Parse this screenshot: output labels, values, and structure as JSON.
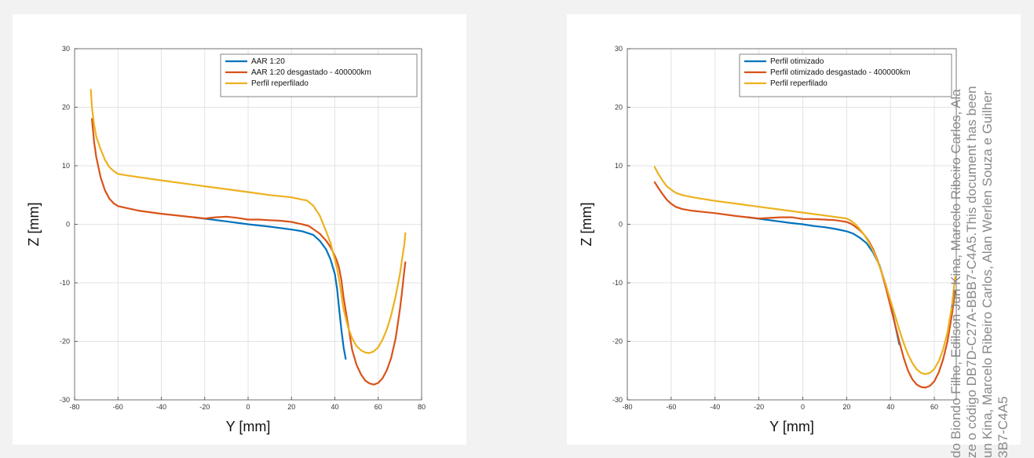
{
  "chart_data": [
    {
      "type": "line",
      "title": "",
      "xlabel": "Y [mm]",
      "ylabel": "Z [mm]",
      "xlim": [
        -80,
        80
      ],
      "ylim": [
        -30,
        30
      ],
      "xticks": [
        -80,
        -60,
        -40,
        -20,
        0,
        20,
        40,
        60,
        80
      ],
      "yticks": [
        -30,
        -20,
        -10,
        0,
        10,
        20,
        30
      ],
      "grid": true,
      "legend": "top-right",
      "series": [
        {
          "name": "AAR 1:20",
          "color": "#0072BD",
          "x": [
            -25,
            -10,
            0,
            10,
            20,
            25,
            30,
            33,
            36,
            38,
            40,
            41,
            42,
            43,
            44,
            45
          ],
          "y": [
            1.2,
            0.5,
            0,
            -0.4,
            -0.9,
            -1.2,
            -1.8,
            -2.8,
            -4.3,
            -6,
            -8.5,
            -11,
            -14.5,
            -18,
            -21,
            -23
          ]
        },
        {
          "name": "AAR 1:20 desgastado - 400000km",
          "color": "#D95319",
          "x": [
            -72,
            -71,
            -70,
            -68,
            -66,
            -64,
            -62,
            -60,
            -55,
            -50,
            -40,
            -30,
            -20,
            -15,
            -10,
            -5,
            0,
            5,
            10,
            15,
            20,
            25,
            28,
            30,
            33,
            36,
            38,
            40,
            41,
            42,
            43,
            44,
            46,
            48,
            50,
            52,
            54,
            56,
            58,
            60,
            62,
            64,
            66,
            68,
            70,
            71,
            72,
            72.5
          ],
          "y": [
            18,
            14,
            11.5,
            8,
            5.8,
            4.4,
            3.6,
            3.1,
            2.7,
            2.3,
            1.8,
            1.4,
            1.0,
            1.2,
            1.3,
            1.1,
            0.8,
            0.8,
            0.7,
            0.6,
            0.4,
            0,
            -0.3,
            -0.8,
            -1.6,
            -2.8,
            -3.9,
            -5.4,
            -6.3,
            -7.5,
            -9.5,
            -12.5,
            -17,
            -21.5,
            -24,
            -25.6,
            -26.7,
            -27.2,
            -27.4,
            -27.1,
            -26.3,
            -24.9,
            -22.8,
            -19.5,
            -14.5,
            -11.5,
            -8,
            -6.5
          ]
        },
        {
          "name": "Perfil reperfilado",
          "color": "#EDB120",
          "x": [
            -72.5,
            -72,
            -71,
            -70,
            -68,
            -66,
            -64,
            -62,
            -60,
            -55,
            -40,
            -20,
            0,
            10,
            20,
            25,
            27,
            30,
            33,
            36,
            38,
            40,
            41,
            42,
            43,
            44,
            46,
            48,
            50,
            52,
            54,
            56,
            58,
            60,
            62,
            64,
            66,
            68,
            70,
            71,
            72,
            72.5
          ],
          "y": [
            23,
            20,
            17,
            15,
            12.8,
            11,
            9.8,
            9.1,
            8.6,
            8.3,
            7.5,
            6.5,
            5.5,
            5,
            4.6,
            4.2,
            4.1,
            3.2,
            1.5,
            -1.2,
            -3.2,
            -6,
            -7.5,
            -9.5,
            -12,
            -14.5,
            -17.5,
            -19.5,
            -20.8,
            -21.5,
            -21.9,
            -22,
            -21.7,
            -21,
            -19.7,
            -17.9,
            -15.5,
            -12.3,
            -8.5,
            -6,
            -3.5,
            -1.5
          ]
        }
      ]
    },
    {
      "type": "line",
      "title": "",
      "xlabel": "Y [mm]",
      "ylabel": "Z [mm]",
      "xlim": [
        -80,
        70
      ],
      "ylim": [
        -30,
        30
      ],
      "xticks": [
        -80,
        -60,
        -40,
        -20,
        0,
        20,
        40,
        60
      ],
      "yticks": [
        -30,
        -20,
        -10,
        0,
        10,
        20,
        30
      ],
      "grid": true,
      "legend": "top-right",
      "series": [
        {
          "name": "Perfil otimizado",
          "color": "#0072BD",
          "x": [
            -25,
            -15,
            -5,
            0,
            5,
            10,
            15,
            20,
            23,
            26,
            29,
            32,
            35,
            38,
            40,
            42,
            44
          ],
          "y": [
            1.2,
            0.7,
            0.2,
            0,
            -0.3,
            -0.5,
            -0.8,
            -1.2,
            -1.6,
            -2.3,
            -3.2,
            -4.8,
            -7,
            -10.5,
            -13.5,
            -17,
            -20.5
          ]
        },
        {
          "name": "Perfil otimizado desgastado - 400000km",
          "color": "#D95319",
          "x": [
            -67.5,
            -66,
            -64,
            -62,
            -60,
            -58,
            -55,
            -50,
            -40,
            -30,
            -20,
            -10,
            -5,
            0,
            5,
            10,
            15,
            20,
            22,
            24,
            26,
            28,
            30,
            32,
            34,
            36,
            38,
            40,
            42,
            44,
            46,
            48,
            50,
            52,
            54,
            56,
            58,
            60,
            62,
            64,
            66,
            68,
            69.5
          ],
          "y": [
            7.2,
            6.3,
            5.2,
            4.2,
            3.5,
            3.0,
            2.6,
            2.3,
            1.9,
            1.4,
            1.0,
            1.2,
            1.2,
            0.9,
            0.9,
            0.8,
            0.7,
            0.4,
            0.1,
            -0.4,
            -1.0,
            -1.8,
            -2.8,
            -4.2,
            -6,
            -8.3,
            -11,
            -14,
            -17,
            -20,
            -22.8,
            -25,
            -26.5,
            -27.4,
            -27.8,
            -27.9,
            -27.6,
            -26.8,
            -25.3,
            -23.1,
            -20,
            -15.5,
            -11.5
          ]
        },
        {
          "name": "Perfil reperfilado",
          "color": "#EDB120",
          "x": [
            -67.5,
            -66,
            -64,
            -62,
            -60,
            -58,
            -55,
            -50,
            -40,
            -30,
            -20,
            -10,
            0,
            10,
            20,
            22,
            24,
            26,
            28,
            30,
            32,
            34,
            36,
            38,
            40,
            42,
            44,
            46,
            48,
            50,
            52,
            54,
            56,
            58,
            60,
            62,
            64,
            66,
            68,
            69.5
          ],
          "y": [
            9.8,
            8.7,
            7.5,
            6.5,
            5.9,
            5.4,
            5,
            4.6,
            4,
            3.5,
            3,
            2.5,
            2,
            1.5,
            1,
            0.6,
            0,
            -0.8,
            -1.8,
            -3,
            -4.5,
            -6.2,
            -8.2,
            -10.5,
            -13,
            -15.5,
            -18,
            -20.3,
            -22.2,
            -23.7,
            -24.8,
            -25.4,
            -25.6,
            -25.4,
            -24.7,
            -23.4,
            -21.4,
            -18.5,
            -14,
            -9
          ]
        }
      ]
    }
  ],
  "watermark": {
    "lines": [
      "do Biondo Filho, Edilson Jun Kina, Marcelo Ribeiro Carlos, Ala",
      "ze o código DB7D-C27A-BBB7-C4A5.This document has been",
      "un Kina, Marcelo Ribeiro Carlos, Alan Werlen Souza e Guilher",
      "3B7-C4A5"
    ]
  }
}
